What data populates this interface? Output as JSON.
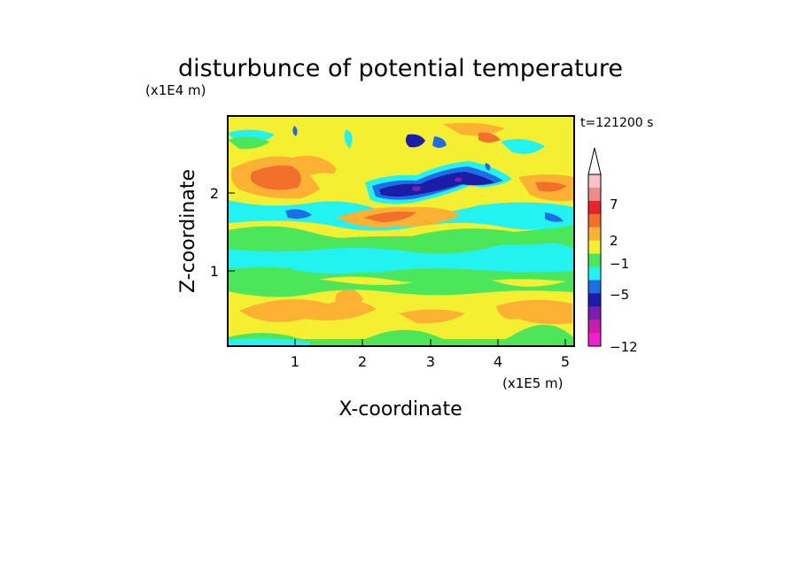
{
  "chart_data": {
    "type": "contour",
    "title": "disturbunce of potential temperature",
    "time_label": "t=121200 s",
    "xlabel": "X-coordinate",
    "ylabel": "Z-coordinate",
    "x_scale_label": "(x1E5 m)",
    "y_scale_label": "(x1E4 m)",
    "x_unit": "x1E5 m",
    "y_unit": "x1E4 m",
    "xlim": [
      0,
      5.12
    ],
    "ylim": [
      0,
      2.95
    ],
    "x_ticks": [
      1,
      2,
      3,
      4,
      5
    ],
    "y_ticks": [
      1,
      2
    ],
    "colorbar": {
      "tick_labels": [
        "7",
        "2",
        "−1",
        "−5",
        "−12"
      ],
      "tick_values": [
        7,
        2,
        -1,
        -5,
        -12
      ],
      "levels_top_to_bottom": [
        {
          "color": "#f6c2c6"
        },
        {
          "color": "#ef8b8b"
        },
        {
          "color": "#e8232a"
        },
        {
          "color": "#f3702c"
        },
        {
          "color": "#fcb135"
        },
        {
          "color": "#f4ef30"
        },
        {
          "color": "#4ce65a"
        },
        {
          "color": "#22f2f2"
        },
        {
          "color": "#1d6ee6"
        },
        {
          "color": "#1c1ca8"
        },
        {
          "color": "#7a1fb0"
        },
        {
          "color": "#c81ea8"
        },
        {
          "color": "#f21ed2"
        }
      ],
      "extend_top": true
    },
    "regions": [
      {
        "x": [
          0.0,
          5.12
        ],
        "z": [
          0.0,
          0.1
        ],
        "level": "green"
      },
      {
        "x": [
          0.0,
          5.12
        ],
        "z": [
          0.1,
          0.7
        ],
        "level": "yellow"
      },
      {
        "x": [
          0.8,
          2.0
        ],
        "z": [
          0.3,
          0.55
        ],
        "level": "orange"
      },
      {
        "x": [
          4.3,
          5.1
        ],
        "z": [
          0.35,
          0.55
        ],
        "level": "orange"
      },
      {
        "x": [
          0.0,
          5.12
        ],
        "z": [
          0.7,
          0.8
        ],
        "level": "green"
      },
      {
        "x": [
          0.0,
          5.12
        ],
        "z": [
          0.8,
          1.0
        ],
        "level": "green"
      },
      {
        "x": [
          0.0,
          5.12
        ],
        "z": [
          1.0,
          1.45
        ],
        "level": "cyan"
      },
      {
        "x": [
          0.0,
          5.12
        ],
        "z": [
          1.45,
          1.6
        ],
        "level": "green"
      },
      {
        "x": [
          1.0,
          5.12
        ],
        "z": [
          1.5,
          1.8
        ],
        "level": "yellow"
      },
      {
        "x": [
          1.5,
          2.8
        ],
        "z": [
          1.6,
          1.8
        ],
        "level": "orange"
      },
      {
        "x": [
          0.0,
          5.12
        ],
        "z": [
          1.8,
          2.0
        ],
        "level": "cyan"
      },
      {
        "x": [
          0.0,
          5.12
        ],
        "z": [
          2.0,
          2.95
        ],
        "level": "yellow"
      },
      {
        "x": [
          0.2,
          1.2
        ],
        "z": [
          2.1,
          2.3
        ],
        "level": "red"
      },
      {
        "x": [
          2.1,
          3.8
        ],
        "z": [
          2.0,
          2.4
        ],
        "level": "darkblue"
      },
      {
        "x": [
          2.6,
          2.9
        ],
        "z": [
          2.1,
          2.2
        ],
        "level": "purple"
      }
    ]
  }
}
